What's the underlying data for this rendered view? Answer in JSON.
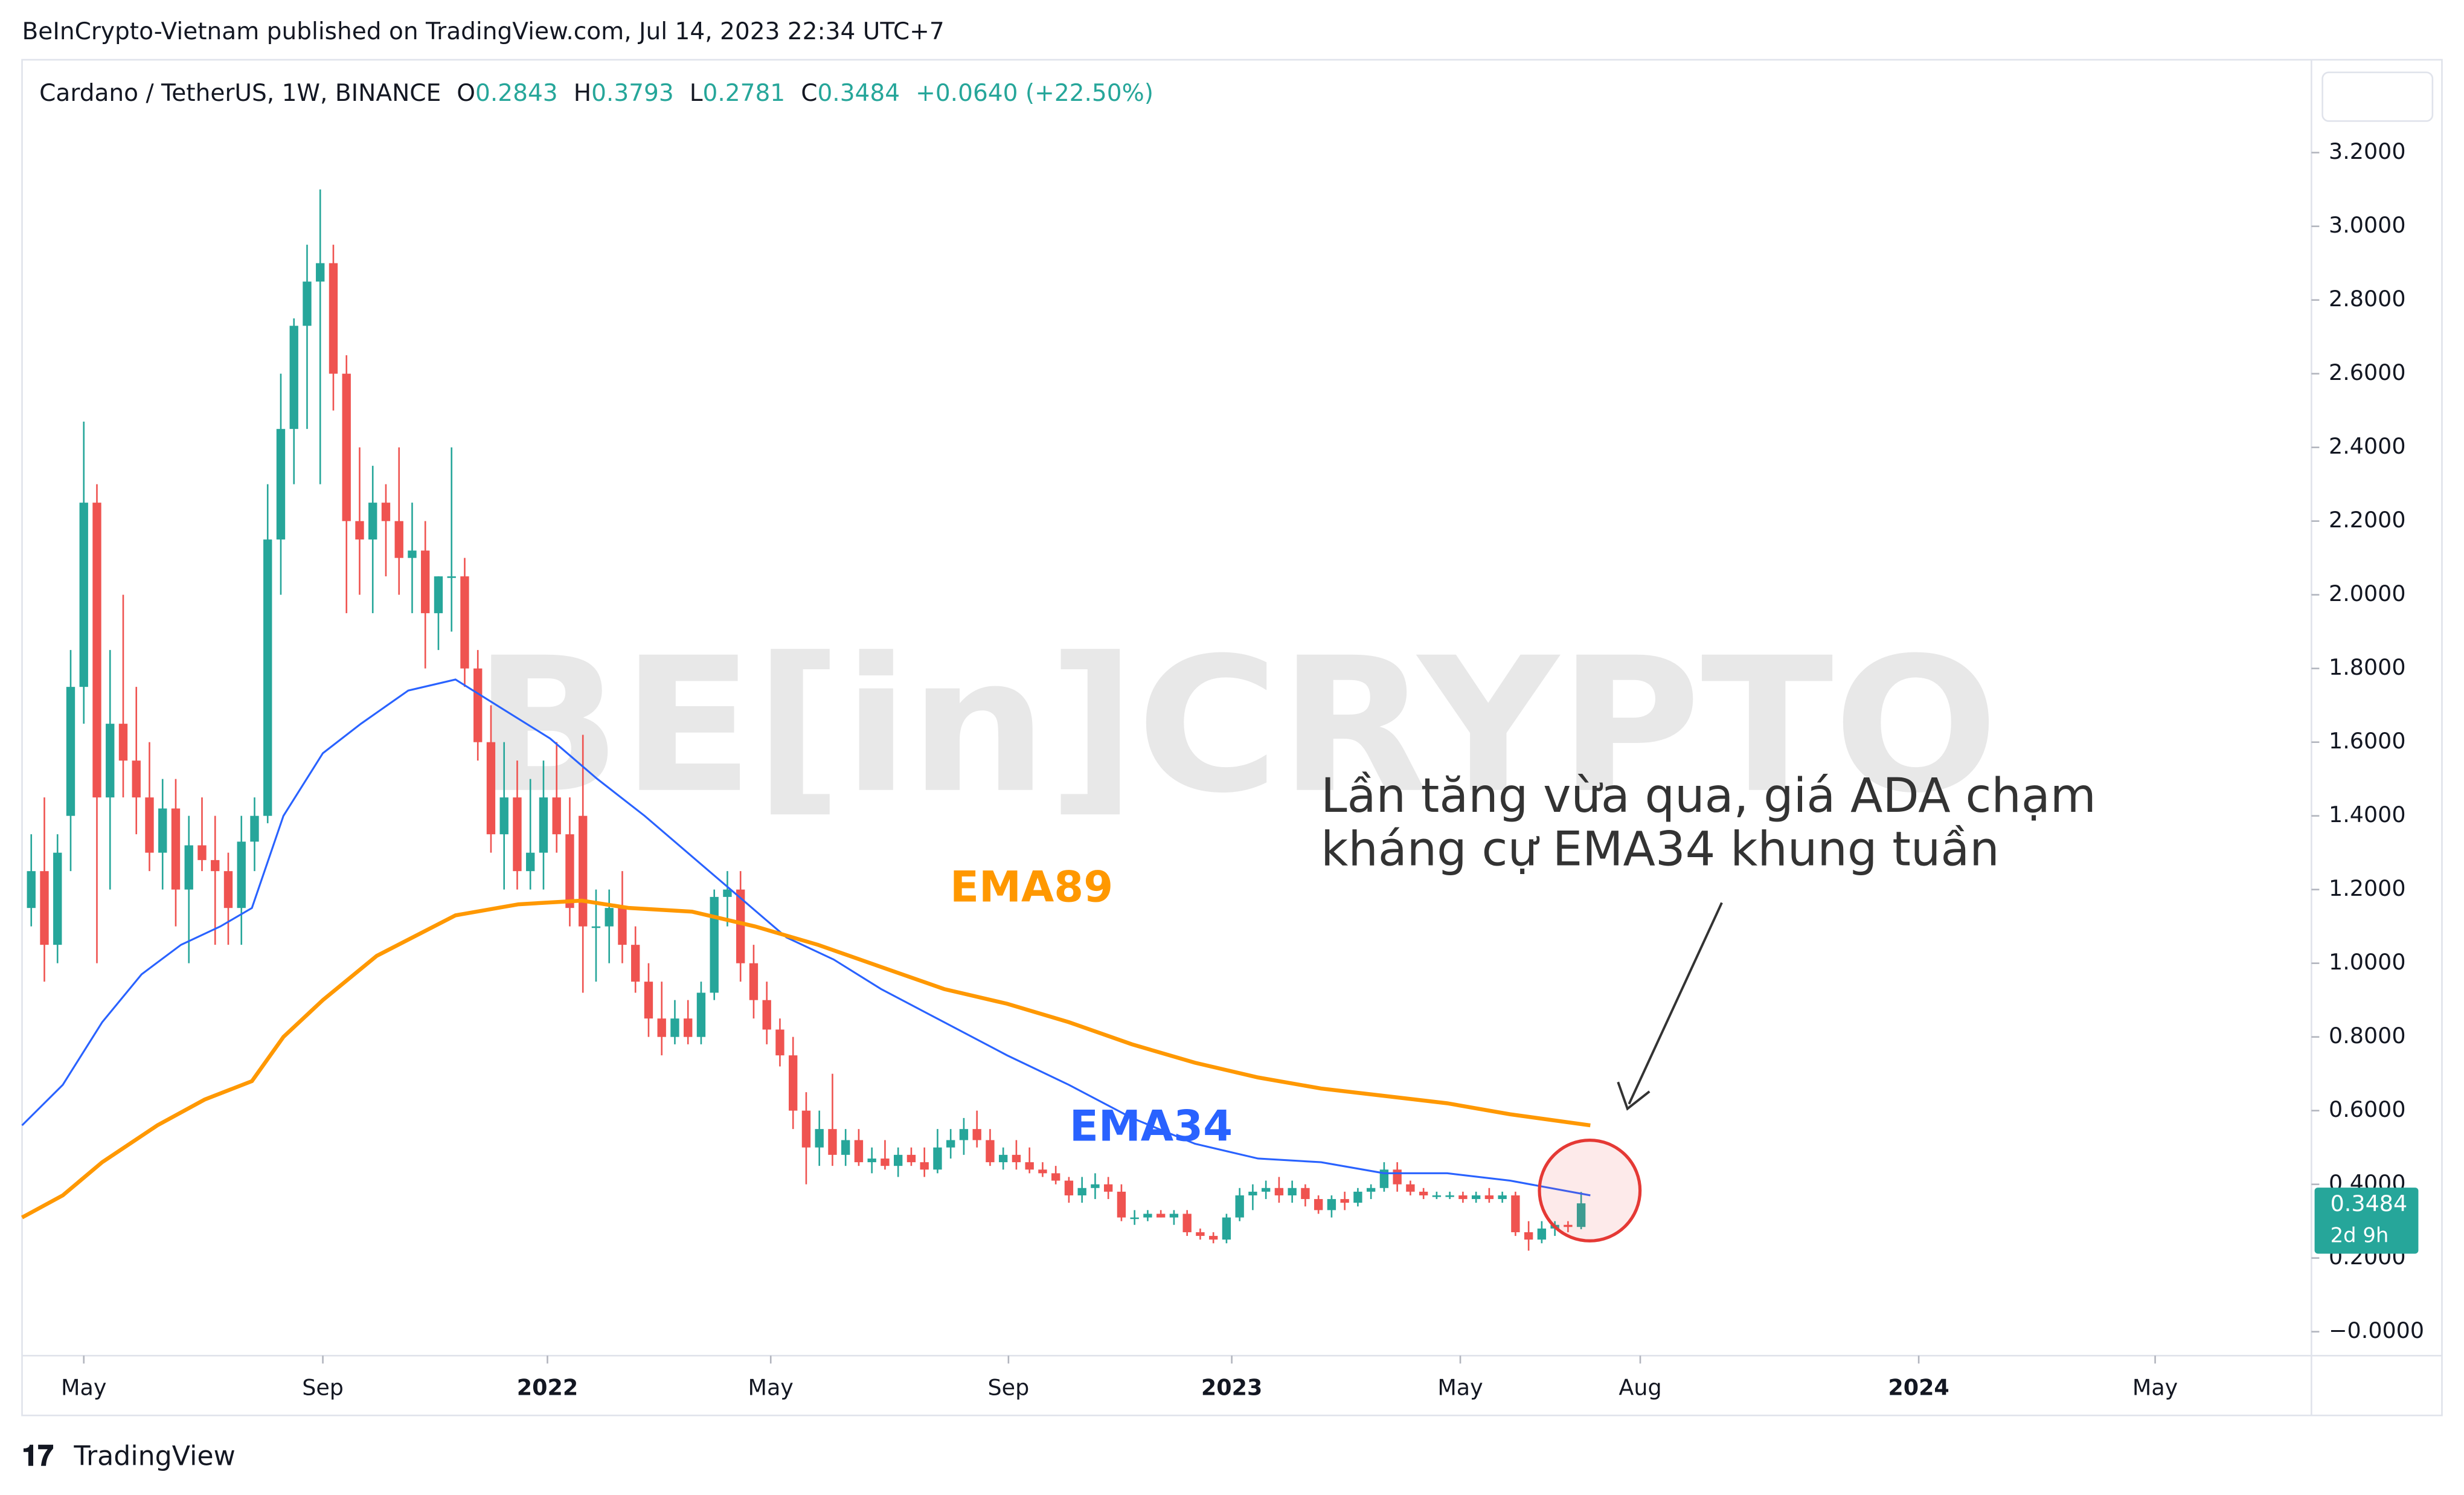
{
  "header": "BeInCrypto-Vietnam published on TradingView.com, Jul 14, 2023 22:34 UTC+7",
  "footer": "TradingView",
  "chart_data": {
    "type": "candlestick",
    "title": "Cardano / TetherUS, 1W, BINANCE",
    "ohlc_labels": [
      "O",
      "H",
      "L",
      "C"
    ],
    "change": "+0.0640 (+22.50%)",
    "countdown": "2d 9h",
    "watermark": "BE[in]CRYPTO",
    "annotation": [
      "Lần tăng vừa qua, giá ADA chạm",
      "kháng cự EMA34 khung tuần"
    ],
    "up_color": "#26a69a",
    "down_color": "#ef5350",
    "candles": [
      [
        1.15,
        1.35,
        1.1,
        1.25
      ],
      [
        1.25,
        1.45,
        0.95,
        1.05
      ],
      [
        1.05,
        1.35,
        1.0,
        1.3
      ],
      [
        1.4,
        1.85,
        1.25,
        1.75
      ],
      [
        1.75,
        2.47,
        1.65,
        2.25
      ],
      [
        2.25,
        2.3,
        1.0,
        1.45
      ],
      [
        1.45,
        1.85,
        1.2,
        1.65
      ],
      [
        1.65,
        2.0,
        1.45,
        1.55
      ],
      [
        1.55,
        1.75,
        1.35,
        1.45
      ],
      [
        1.45,
        1.6,
        1.25,
        1.3
      ],
      [
        1.3,
        1.5,
        1.2,
        1.42
      ],
      [
        1.42,
        1.5,
        1.1,
        1.2
      ],
      [
        1.2,
        1.4,
        1.0,
        1.32
      ],
      [
        1.32,
        1.45,
        1.25,
        1.28
      ],
      [
        1.28,
        1.4,
        1.05,
        1.25
      ],
      [
        1.25,
        1.3,
        1.05,
        1.15
      ],
      [
        1.15,
        1.4,
        1.05,
        1.33
      ],
      [
        1.33,
        1.45,
        1.25,
        1.4
      ],
      [
        1.4,
        2.3,
        1.38,
        2.15
      ],
      [
        2.15,
        2.6,
        2.0,
        2.45
      ],
      [
        2.45,
        2.75,
        2.3,
        2.73
      ],
      [
        2.73,
        2.95,
        2.45,
        2.85
      ],
      [
        2.85,
        3.1,
        2.3,
        2.9
      ],
      [
        2.9,
        2.95,
        2.5,
        2.6
      ],
      [
        2.6,
        2.65,
        1.95,
        2.2
      ],
      [
        2.2,
        2.4,
        2.0,
        2.15
      ],
      [
        2.15,
        2.35,
        1.95,
        2.25
      ],
      [
        2.25,
        2.3,
        2.05,
        2.2
      ],
      [
        2.2,
        2.4,
        2.0,
        2.1
      ],
      [
        2.1,
        2.25,
        1.95,
        2.12
      ],
      [
        2.12,
        2.2,
        1.8,
        1.95
      ],
      [
        1.95,
        2.05,
        1.85,
        2.05
      ],
      [
        2.05,
        2.4,
        1.9,
        2.05
      ],
      [
        2.05,
        2.1,
        1.75,
        1.8
      ],
      [
        1.8,
        1.85,
        1.55,
        1.6
      ],
      [
        1.6,
        1.7,
        1.3,
        1.35
      ],
      [
        1.35,
        1.6,
        1.2,
        1.45
      ],
      [
        1.45,
        1.55,
        1.2,
        1.25
      ],
      [
        1.25,
        1.5,
        1.2,
        1.3
      ],
      [
        1.3,
        1.55,
        1.2,
        1.45
      ],
      [
        1.45,
        1.6,
        1.3,
        1.35
      ],
      [
        1.35,
        1.45,
        1.1,
        1.15
      ],
      [
        1.4,
        1.62,
        0.92,
        1.1
      ],
      [
        1.1,
        1.2,
        0.95,
        1.1
      ],
      [
        1.1,
        1.2,
        1.0,
        1.15
      ],
      [
        1.15,
        1.25,
        1.0,
        1.05
      ],
      [
        1.05,
        1.1,
        0.92,
        0.95
      ],
      [
        0.95,
        1.0,
        0.8,
        0.85
      ],
      [
        0.85,
        0.95,
        0.75,
        0.8
      ],
      [
        0.8,
        0.9,
        0.78,
        0.85
      ],
      [
        0.85,
        0.9,
        0.78,
        0.8
      ],
      [
        0.8,
        0.95,
        0.78,
        0.92
      ],
      [
        0.92,
        1.2,
        0.9,
        1.18
      ],
      [
        1.18,
        1.25,
        1.1,
        1.2
      ],
      [
        1.2,
        1.25,
        0.95,
        1.0
      ],
      [
        1.0,
        1.05,
        0.85,
        0.9
      ],
      [
        0.9,
        0.95,
        0.78,
        0.82
      ],
      [
        0.82,
        0.85,
        0.72,
        0.75
      ],
      [
        0.75,
        0.8,
        0.55,
        0.6
      ],
      [
        0.6,
        0.65,
        0.4,
        0.5
      ],
      [
        0.5,
        0.6,
        0.45,
        0.55
      ],
      [
        0.55,
        0.7,
        0.45,
        0.48
      ],
      [
        0.48,
        0.55,
        0.45,
        0.52
      ],
      [
        0.52,
        0.55,
        0.45,
        0.46
      ],
      [
        0.46,
        0.5,
        0.43,
        0.47
      ],
      [
        0.47,
        0.52,
        0.44,
        0.45
      ],
      [
        0.45,
        0.5,
        0.42,
        0.48
      ],
      [
        0.48,
        0.5,
        0.45,
        0.46
      ],
      [
        0.46,
        0.5,
        0.42,
        0.44
      ],
      [
        0.44,
        0.55,
        0.43,
        0.5
      ],
      [
        0.5,
        0.55,
        0.47,
        0.52
      ],
      [
        0.52,
        0.58,
        0.48,
        0.55
      ],
      [
        0.55,
        0.6,
        0.5,
        0.52
      ],
      [
        0.52,
        0.55,
        0.45,
        0.46
      ],
      [
        0.46,
        0.5,
        0.44,
        0.48
      ],
      [
        0.48,
        0.52,
        0.44,
        0.46
      ],
      [
        0.46,
        0.5,
        0.43,
        0.44
      ],
      [
        0.44,
        0.46,
        0.42,
        0.43
      ],
      [
        0.43,
        0.45,
        0.4,
        0.41
      ],
      [
        0.41,
        0.42,
        0.35,
        0.37
      ],
      [
        0.37,
        0.42,
        0.35,
        0.39
      ],
      [
        0.39,
        0.43,
        0.36,
        0.4
      ],
      [
        0.4,
        0.42,
        0.36,
        0.38
      ],
      [
        0.38,
        0.4,
        0.3,
        0.31
      ],
      [
        0.31,
        0.33,
        0.29,
        0.31
      ],
      [
        0.31,
        0.33,
        0.3,
        0.32
      ],
      [
        0.32,
        0.33,
        0.31,
        0.31
      ],
      [
        0.31,
        0.33,
        0.29,
        0.32
      ],
      [
        0.32,
        0.33,
        0.26,
        0.27
      ],
      [
        0.27,
        0.28,
        0.25,
        0.26
      ],
      [
        0.26,
        0.27,
        0.24,
        0.25
      ],
      [
        0.25,
        0.32,
        0.24,
        0.31
      ],
      [
        0.31,
        0.39,
        0.3,
        0.37
      ],
      [
        0.37,
        0.4,
        0.33,
        0.38
      ],
      [
        0.38,
        0.41,
        0.36,
        0.39
      ],
      [
        0.39,
        0.42,
        0.35,
        0.37
      ],
      [
        0.37,
        0.41,
        0.35,
        0.39
      ],
      [
        0.39,
        0.4,
        0.34,
        0.36
      ],
      [
        0.36,
        0.37,
        0.32,
        0.33
      ],
      [
        0.33,
        0.37,
        0.31,
        0.36
      ],
      [
        0.36,
        0.38,
        0.33,
        0.35
      ],
      [
        0.35,
        0.39,
        0.34,
        0.38
      ],
      [
        0.38,
        0.4,
        0.36,
        0.39
      ],
      [
        0.39,
        0.46,
        0.38,
        0.44
      ],
      [
        0.44,
        0.46,
        0.38,
        0.4
      ],
      [
        0.4,
        0.41,
        0.37,
        0.38
      ],
      [
        0.38,
        0.39,
        0.36,
        0.37
      ],
      [
        0.37,
        0.38,
        0.36,
        0.37
      ],
      [
        0.37,
        0.38,
        0.36,
        0.37
      ],
      [
        0.37,
        0.38,
        0.35,
        0.36
      ],
      [
        0.36,
        0.38,
        0.35,
        0.37
      ],
      [
        0.37,
        0.39,
        0.35,
        0.36
      ],
      [
        0.36,
        0.38,
        0.35,
        0.37
      ],
      [
        0.37,
        0.38,
        0.26,
        0.27
      ],
      [
        0.27,
        0.3,
        0.22,
        0.25
      ],
      [
        0.25,
        0.3,
        0.24,
        0.28
      ],
      [
        0.28,
        0.3,
        0.26,
        0.29
      ],
      [
        0.29,
        0.3,
        0.27,
        0.2843
      ],
      [
        0.2843,
        0.3793,
        0.2781,
        0.3484
      ]
    ],
    "series": [
      {
        "name": "EMA34",
        "color": "#2962ff",
        "x": [
          -0.7,
          2.4,
          5.4,
          8.4,
          11.4,
          14.4,
          16.8,
          19.2,
          22.2,
          25.1,
          28.7,
          32.3,
          35.9,
          39.5,
          43.1,
          46.7,
          50.3,
          53.9,
          57.5,
          61.1,
          64.7,
          69.5,
          74.3,
          79,
          83.8,
          88.6,
          93.4,
          98.2,
          103,
          107.8,
          112.6,
          118.7
        ],
        "values": [
          0.56,
          0.67,
          0.84,
          0.97,
          1.05,
          1.1,
          1.15,
          1.4,
          1.57,
          1.65,
          1.74,
          1.77,
          1.69,
          1.61,
          1.5,
          1.4,
          1.29,
          1.18,
          1.07,
          1.01,
          0.93,
          0.84,
          0.75,
          0.67,
          0.58,
          0.51,
          0.47,
          0.46,
          0.43,
          0.43,
          0.41,
          0.37
        ]
      },
      {
        "name": "EMA89",
        "color": "#ff9800",
        "x": [
          -0.7,
          2.4,
          5.4,
          9.6,
          13.2,
          16.8,
          19.2,
          22.2,
          26.3,
          32.3,
          37.1,
          41.9,
          45.5,
          50.3,
          55.1,
          59.9,
          64.7,
          69.5,
          74.3,
          79,
          83.8,
          88.6,
          93.4,
          98.2,
          103,
          107.8,
          112.6,
          118.7
        ],
        "values": [
          0.31,
          0.37,
          0.46,
          0.56,
          0.63,
          0.68,
          0.8,
          0.9,
          1.02,
          1.13,
          1.16,
          1.17,
          1.15,
          1.14,
          1.1,
          1.05,
          0.99,
          0.93,
          0.89,
          0.84,
          0.78,
          0.73,
          0.69,
          0.66,
          0.64,
          0.62,
          0.59,
          0.56
        ]
      }
    ],
    "xlim": [
      -0.7,
      173.6
    ],
    "xticks": [
      {
        "value": 4,
        "label": "May"
      },
      {
        "value": 22.2,
        "label": "Sep"
      },
      {
        "value": 39.3,
        "label": "2022"
      },
      {
        "value": 56.3,
        "label": "May"
      },
      {
        "value": 74.4,
        "label": "Sep"
      },
      {
        "value": 91.4,
        "label": "2023"
      },
      {
        "value": 108.8,
        "label": "May"
      },
      {
        "value": 122.5,
        "label": "Aug"
      },
      {
        "value": 143.7,
        "label": "2024"
      },
      {
        "value": 161.7,
        "label": "May"
      }
    ],
    "ylim": [
      -0.065,
      3.452
    ],
    "yticks": [
      {
        "value": 3.2,
        "label": "3.2000"
      },
      {
        "value": 3.0,
        "label": "3.0000"
      },
      {
        "value": 2.8,
        "label": "2.8000"
      },
      {
        "value": 2.6,
        "label": "2.6000"
      },
      {
        "value": 2.4,
        "label": "2.4000"
      },
      {
        "value": 2.2,
        "label": "2.2000"
      },
      {
        "value": 2.0,
        "label": "2.0000"
      },
      {
        "value": 1.8,
        "label": "1.8000"
      },
      {
        "value": 1.6,
        "label": "1.6000"
      },
      {
        "value": 1.4,
        "label": "1.4000"
      },
      {
        "value": 1.2,
        "label": "1.2000"
      },
      {
        "value": 1.0,
        "label": "1.0000"
      },
      {
        "value": 0.8,
        "label": "0.8000"
      },
      {
        "value": 0.6,
        "label": "0.6000"
      },
      {
        "value": 0.4,
        "label": "0.4000"
      },
      {
        "value": 0.2,
        "label": "0.2000"
      },
      {
        "value": 0,
        "label": "−0.0000"
      }
    ]
  }
}
